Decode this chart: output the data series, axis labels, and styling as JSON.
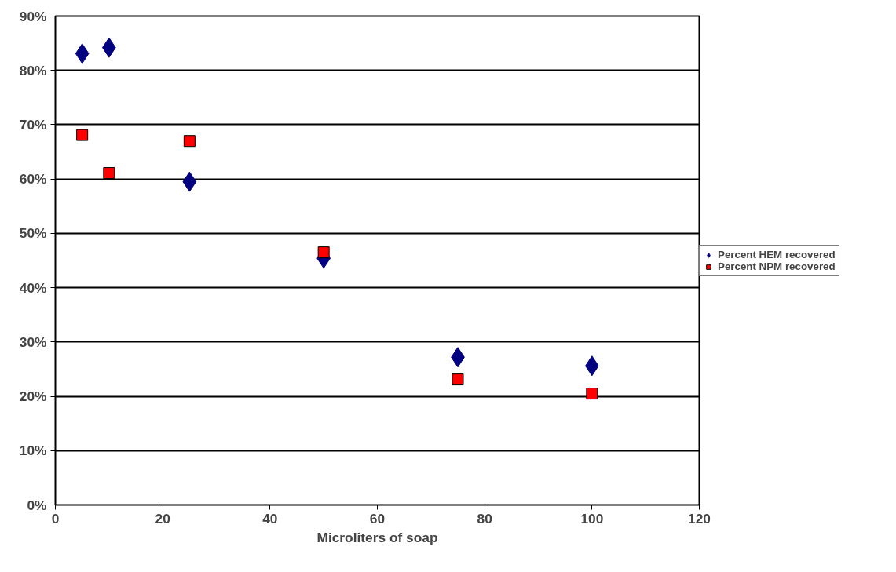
{
  "chart_data": {
    "type": "scatter",
    "xlabel": "Microliters of soap",
    "xlim": [
      0,
      120
    ],
    "xticks": [
      0,
      20,
      40,
      60,
      80,
      100,
      120
    ],
    "ylim": [
      0,
      90
    ],
    "yticks": [
      {
        "value": 0,
        "label": "0%"
      },
      {
        "value": 10,
        "label": "10%"
      },
      {
        "value": 20,
        "label": "20%"
      },
      {
        "value": 30,
        "label": "30%"
      },
      {
        "value": 40,
        "label": "40%"
      },
      {
        "value": 50,
        "label": "50%"
      },
      {
        "value": 60,
        "label": "60%"
      },
      {
        "value": 70,
        "label": "70%"
      },
      {
        "value": 80,
        "label": "80%"
      },
      {
        "value": 90,
        "label": "90%"
      }
    ],
    "grid": "y",
    "legend": "right",
    "x": [
      5,
      10,
      25,
      50,
      75,
      100
    ],
    "series": [
      {
        "name": "Percent HEM recovered",
        "color": "#000080",
        "marker": "diamond",
        "values": [
          83.1,
          84.2,
          59.5,
          45.4,
          27.2,
          25.6
        ]
      },
      {
        "name": "Percent NPM recovered",
        "color": "#ff0000",
        "marker": "square",
        "values": [
          68.1,
          61.1,
          67.0,
          46.5,
          23.1,
          20.5
        ]
      }
    ]
  }
}
